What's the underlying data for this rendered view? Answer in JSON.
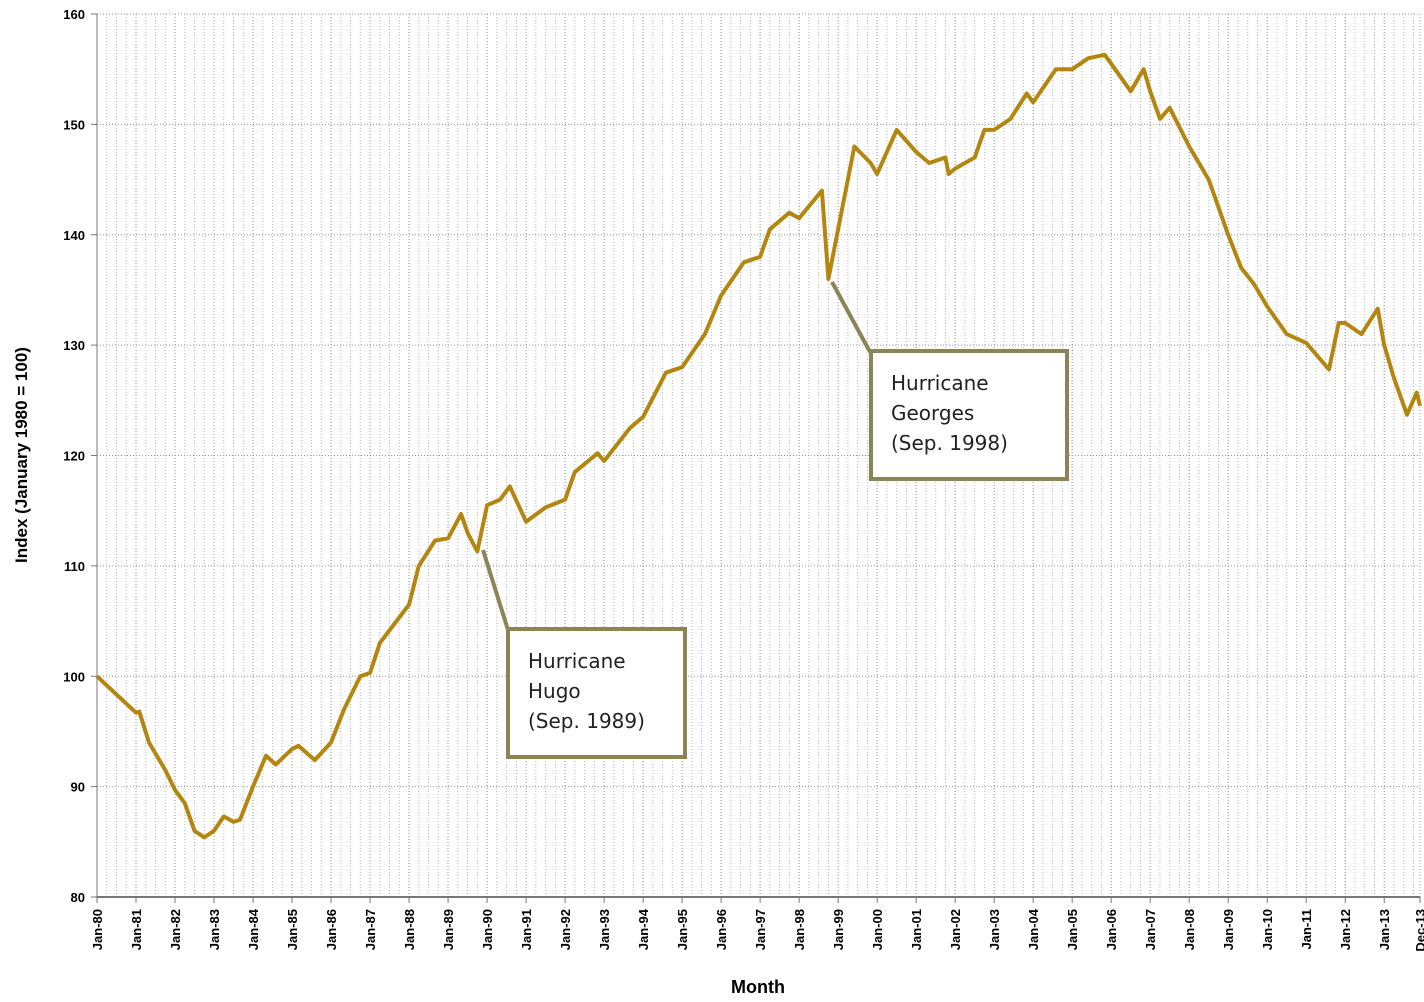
{
  "chart_data": {
    "type": "line",
    "x_label": "Month",
    "y_label": "Index (January 1980 = 100)",
    "xlim": [
      0,
      407
    ],
    "xticks": [
      {
        "value": 0,
        "label": "Jan-80"
      },
      {
        "value": 12,
        "label": "Jan-81"
      },
      {
        "value": 24,
        "label": "Jan-82"
      },
      {
        "value": 36,
        "label": "Jan-83"
      },
      {
        "value": 48,
        "label": "Jan-84"
      },
      {
        "value": 60,
        "label": "Jan-85"
      },
      {
        "value": 72,
        "label": "Jan-86"
      },
      {
        "value": 84,
        "label": "Jan-87"
      },
      {
        "value": 96,
        "label": "Jan-88"
      },
      {
        "value": 108,
        "label": "Jan-89"
      },
      {
        "value": 120,
        "label": "Jan-90"
      },
      {
        "value": 132,
        "label": "Jan-91"
      },
      {
        "value": 144,
        "label": "Jan-92"
      },
      {
        "value": 156,
        "label": "Jan-93"
      },
      {
        "value": 168,
        "label": "Jan-94"
      },
      {
        "value": 180,
        "label": "Jan-95"
      },
      {
        "value": 192,
        "label": "Jan-96"
      },
      {
        "value": 204,
        "label": "Jan-97"
      },
      {
        "value": 216,
        "label": "Jan-98"
      },
      {
        "value": 228,
        "label": "Jan-99"
      },
      {
        "value": 240,
        "label": "Jan-00"
      },
      {
        "value": 252,
        "label": "Jan-01"
      },
      {
        "value": 264,
        "label": "Jan-02"
      },
      {
        "value": 276,
        "label": "Jan-03"
      },
      {
        "value": 288,
        "label": "Jan-04"
      },
      {
        "value": 300,
        "label": "Jan-05"
      },
      {
        "value": 312,
        "label": "Jan-06"
      },
      {
        "value": 324,
        "label": "Jan-07"
      },
      {
        "value": 336,
        "label": "Jan-08"
      },
      {
        "value": 348,
        "label": "Jan-09"
      },
      {
        "value": 360,
        "label": "Jan-10"
      },
      {
        "value": 372,
        "label": "Jan-11"
      },
      {
        "value": 384,
        "label": "Jan-12"
      },
      {
        "value": 396,
        "label": "Jan-13"
      },
      {
        "value": 407,
        "label": "Dec-13"
      }
    ],
    "ylim": [
      80,
      160
    ],
    "yticks": [
      80,
      90,
      100,
      110,
      120,
      130,
      140,
      150,
      160
    ],
    "grid": true,
    "series": [
      {
        "color": "#b5860f",
        "x": [
          0,
          12,
          13,
          16,
          21,
          24,
          27,
          30,
          33,
          36,
          39,
          42,
          44,
          48,
          52,
          55,
          60,
          62,
          67,
          72,
          76,
          81,
          84,
          87,
          96,
          99,
          104,
          108,
          112,
          114,
          117,
          120,
          124,
          127,
          132,
          138,
          144,
          147,
          154,
          156,
          164,
          168,
          175,
          180,
          187,
          192,
          199,
          204,
          207,
          213,
          216,
          223,
          225,
          230,
          233,
          238,
          240,
          246,
          252,
          256,
          261,
          262,
          264,
          270,
          273,
          276,
          281,
          286,
          288,
          295,
          300,
          305,
          310,
          312,
          318,
          322,
          324,
          327,
          330,
          336,
          342,
          348,
          352,
          356,
          360,
          366,
          372,
          379,
          382,
          384,
          389,
          394,
          396,
          399,
          403,
          406,
          407
        ],
        "values": [
          100,
          96.7,
          96.8,
          94,
          91.5,
          89.7,
          88.5,
          86,
          85.4,
          86,
          87.3,
          86.8,
          87,
          90,
          92.8,
          92,
          93.4,
          93.7,
          92.4,
          94,
          97,
          100,
          100.3,
          103,
          106.5,
          110,
          112.3,
          112.5,
          114.7,
          113,
          111.3,
          115.5,
          116,
          117.2,
          114,
          115.3,
          116,
          118.5,
          120.2,
          119.5,
          122.5,
          123.5,
          127.5,
          128,
          131,
          134.5,
          137.5,
          138,
          140.5,
          142,
          141.5,
          144,
          136,
          143.5,
          148,
          146.5,
          145.5,
          149.5,
          147.5,
          146.5,
          147,
          145.5,
          146,
          147,
          149.5,
          149.5,
          150.5,
          152.8,
          152,
          155,
          155,
          156,
          156.3,
          155.5,
          153,
          155,
          153,
          150.5,
          151.5,
          148,
          145,
          140,
          137,
          135.5,
          133.5,
          131,
          130.2,
          127.8,
          132,
          132,
          131,
          133.3,
          130,
          127,
          123.7,
          125.7,
          124.5
        ]
      }
    ],
    "annotations": [
      [
        "Hurricane",
        "Hugo",
        "(Sep. 1989)"
      ],
      [
        "Hurricane",
        "Georges",
        "(Sep. 1998)"
      ]
    ]
  }
}
